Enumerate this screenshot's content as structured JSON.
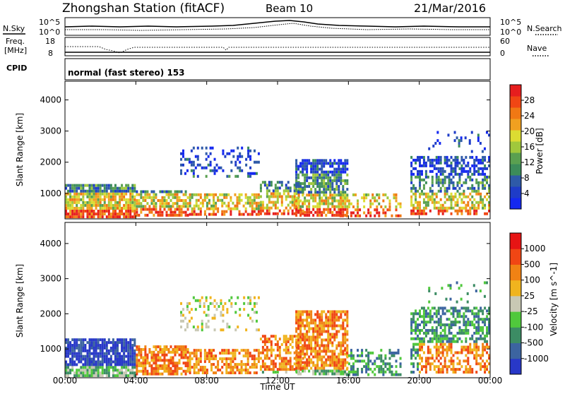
{
  "header": {
    "station": "Zhongshan Station (fitACF)",
    "beam": "Beam 10",
    "date": "21/Mar/2016"
  },
  "noise_panel": {
    "left_label": "N.Sky",
    "left_ticks": [
      "10^5",
      "10^0"
    ],
    "right_label": "N.Search",
    "right_ticks": [
      "10^5",
      "10^0"
    ]
  },
  "freq_panel": {
    "left_label_1": "Freq.",
    "left_label_2": "[MHz]",
    "left_ticks": [
      "18",
      "8"
    ],
    "right_label": "Nave",
    "right_ticks": [
      "60",
      "0"
    ]
  },
  "cpid": {
    "label": "CPID",
    "mode": "normal (fast stereo) 153"
  },
  "chart_data": [
    {
      "type": "heatmap",
      "title": "Power",
      "xlabel": "",
      "ylabel": "Slant Range [km]",
      "xlim": [
        "00:00",
        "24:00"
      ],
      "ylim": [
        180,
        4600
      ],
      "y_ticks": [
        1000,
        2000,
        3000,
        4000
      ],
      "colorbar": {
        "label": "Power [dB]",
        "ticks": [
          "4",
          "8",
          "12",
          "16",
          "20",
          "24",
          "28"
        ],
        "colors": [
          "#1428f0",
          "#1e3cc8",
          "#2e5aa8",
          "#3c8c5a",
          "#5aa050",
          "#a0c83c",
          "#dcdc32",
          "#f0a020",
          "#f07814",
          "#f04614",
          "#e61e1e"
        ],
        "range": [
          0,
          30
        ]
      }
    },
    {
      "type": "heatmap",
      "title": "Velocity",
      "xlabel": "Time UT",
      "ylabel": "Slant Range [km]",
      "xlim": [
        "00:00",
        "24:00"
      ],
      "ylim": [
        180,
        4600
      ],
      "x_ticks": [
        "00:00",
        "04:00",
        "08:00",
        "12:00",
        "16:00",
        "20:00",
        "00:00"
      ],
      "y_ticks": [
        1000,
        2000,
        3000,
        4000
      ],
      "colorbar": {
        "label": "Velocity [m s^-1]",
        "ticks": [
          "1000",
          "500",
          "100",
          "25",
          "-25",
          "-100",
          "-500",
          "-1000"
        ],
        "colors": [
          "#2838c8",
          "#3c64a0",
          "#3c8c64",
          "#50c83c",
          "#c8c8b4",
          "#f0b41e",
          "#f08214",
          "#f04614",
          "#e61414"
        ],
        "range": [
          -1000,
          1000
        ]
      }
    }
  ]
}
